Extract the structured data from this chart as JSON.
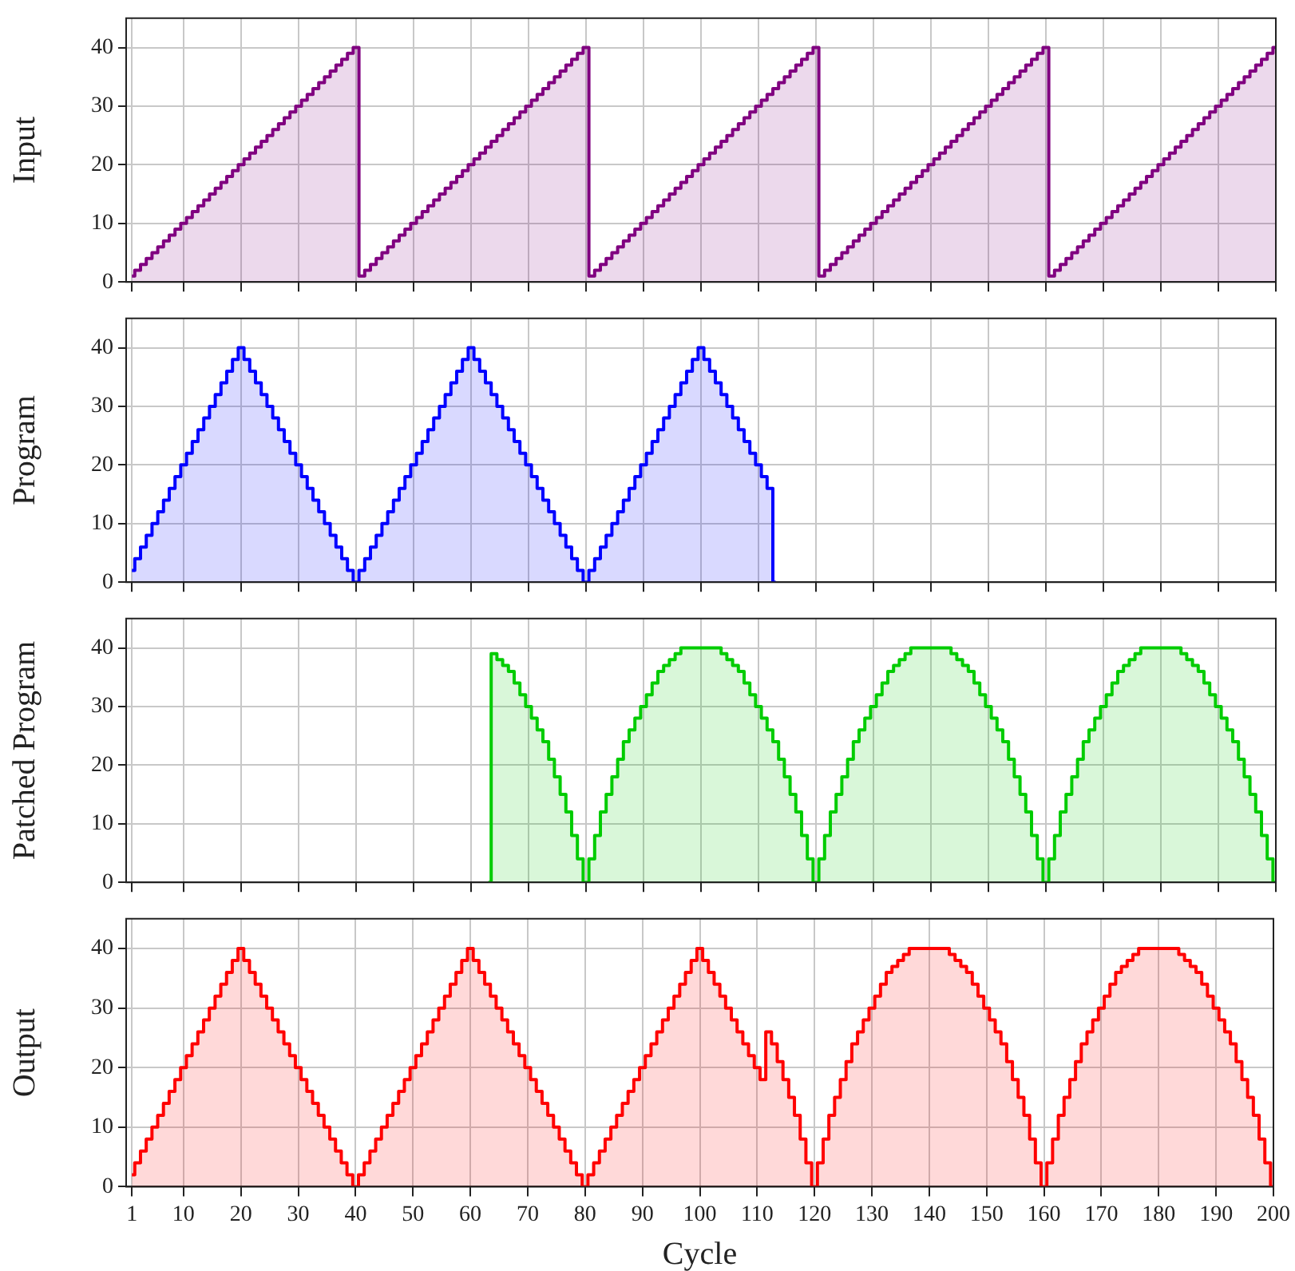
{
  "chart_data": [
    {
      "type": "area",
      "ylabel": "Input",
      "color": "#800080",
      "xlim": [
        0,
        200
      ],
      "ylim": [
        0,
        45
      ],
      "xticks": [
        1,
        10,
        20,
        30,
        40,
        50,
        60,
        70,
        80,
        90,
        100,
        110,
        120,
        130,
        140,
        150,
        160,
        170,
        180,
        190,
        200
      ],
      "yticks": [
        0,
        10,
        20,
        30,
        40
      ],
      "grid": true,
      "tick_labels": "y",
      "x": [
        1,
        2,
        3,
        4,
        5,
        6,
        7,
        8,
        9,
        10,
        11,
        12,
        13,
        14,
        15,
        16,
        17,
        18,
        19,
        20,
        21,
        22,
        23,
        24,
        25,
        26,
        27,
        28,
        29,
        30,
        31,
        32,
        33,
        34,
        35,
        36,
        37,
        38,
        39,
        40,
        41,
        42,
        43,
        44,
        45,
        46,
        47,
        48,
        49,
        50,
        51,
        52,
        53,
        54,
        55,
        56,
        57,
        58,
        59,
        60,
        61,
        62,
        63,
        64,
        65,
        66,
        67,
        68,
        69,
        70,
        71,
        72,
        73,
        74,
        75,
        76,
        77,
        78,
        79,
        80,
        81,
        82,
        83,
        84,
        85,
        86,
        87,
        88,
        89,
        90,
        91,
        92,
        93,
        94,
        95,
        96,
        97,
        98,
        99,
        100,
        101,
        102,
        103,
        104,
        105,
        106,
        107,
        108,
        109,
        110,
        111,
        112,
        113,
        114,
        115,
        116,
        117,
        118,
        119,
        120,
        121,
        122,
        123,
        124,
        125,
        126,
        127,
        128,
        129,
        130,
        131,
        132,
        133,
        134,
        135,
        136,
        137,
        138,
        139,
        140,
        141,
        142,
        143,
        144,
        145,
        146,
        147,
        148,
        149,
        150,
        151,
        152,
        153,
        154,
        155,
        156,
        157,
        158,
        159,
        160,
        161,
        162,
        163,
        164,
        165,
        166,
        167,
        168,
        169,
        170,
        171,
        172,
        173,
        174,
        175,
        176,
        177,
        178,
        179,
        180,
        181,
        182,
        183,
        184,
        185,
        186,
        187,
        188,
        189,
        190,
        191,
        192,
        193,
        194,
        195,
        196,
        197,
        198,
        199,
        200
      ],
      "values": [
        1,
        2,
        3,
        4,
        5,
        6,
        7,
        8,
        9,
        10,
        11,
        12,
        13,
        14,
        15,
        16,
        17,
        18,
        19,
        20,
        21,
        22,
        23,
        24,
        25,
        26,
        27,
        28,
        29,
        30,
        31,
        32,
        33,
        34,
        35,
        36,
        37,
        38,
        39,
        40,
        1,
        2,
        3,
        4,
        5,
        6,
        7,
        8,
        9,
        10,
        11,
        12,
        13,
        14,
        15,
        16,
        17,
        18,
        19,
        20,
        21,
        22,
        23,
        24,
        25,
        26,
        27,
        28,
        29,
        30,
        31,
        32,
        33,
        34,
        35,
        36,
        37,
        38,
        39,
        40,
        1,
        2,
        3,
        4,
        5,
        6,
        7,
        8,
        9,
        10,
        11,
        12,
        13,
        14,
        15,
        16,
        17,
        18,
        19,
        20,
        21,
        22,
        23,
        24,
        25,
        26,
        27,
        28,
        29,
        30,
        31,
        32,
        33,
        34,
        35,
        36,
        37,
        38,
        39,
        40,
        1,
        2,
        3,
        4,
        5,
        6,
        7,
        8,
        9,
        10,
        11,
        12,
        13,
        14,
        15,
        16,
        17,
        18,
        19,
        20,
        21,
        22,
        23,
        24,
        25,
        26,
        27,
        28,
        29,
        30,
        31,
        32,
        33,
        34,
        35,
        36,
        37,
        38,
        39,
        40,
        1,
        2,
        3,
        4,
        5,
        6,
        7,
        8,
        9,
        10,
        11,
        12,
        13,
        14,
        15,
        16,
        17,
        18,
        19,
        20,
        21,
        22,
        23,
        24,
        25,
        26,
        27,
        28,
        29,
        30,
        31,
        32,
        33,
        34,
        35,
        36,
        37,
        38,
        39,
        40
      ]
    },
    {
      "type": "area",
      "ylabel": "Program",
      "color": "#0000ff",
      "xlim": [
        0,
        200
      ],
      "ylim": [
        0,
        45
      ],
      "xticks": [
        1,
        10,
        20,
        30,
        40,
        50,
        60,
        70,
        80,
        90,
        100,
        110,
        120,
        130,
        140,
        150,
        160,
        170,
        180,
        190,
        200
      ],
      "yticks": [
        0,
        10,
        20,
        30,
        40
      ],
      "grid": true,
      "tick_labels": "y",
      "x": [
        1,
        2,
        3,
        4,
        5,
        6,
        7,
        8,
        9,
        10,
        11,
        12,
        13,
        14,
        15,
        16,
        17,
        18,
        19,
        20,
        21,
        22,
        23,
        24,
        25,
        26,
        27,
        28,
        29,
        30,
        31,
        32,
        33,
        34,
        35,
        36,
        37,
        38,
        39,
        40,
        41,
        42,
        43,
        44,
        45,
        46,
        47,
        48,
        49,
        50,
        51,
        52,
        53,
        54,
        55,
        56,
        57,
        58,
        59,
        60,
        61,
        62,
        63,
        64,
        65,
        66,
        67,
        68,
        69,
        70,
        71,
        72,
        73,
        74,
        75,
        76,
        77,
        78,
        79,
        80,
        81,
        82,
        83,
        84,
        85,
        86,
        87,
        88,
        89,
        90,
        91,
        92,
        93,
        94,
        95,
        96,
        97,
        98,
        99,
        100,
        101,
        102,
        103,
        104,
        105,
        106,
        107,
        108,
        109,
        110,
        111,
        112,
        113
      ],
      "values": [
        2,
        4,
        6,
        8,
        10,
        12,
        14,
        16,
        18,
        20,
        22,
        24,
        26,
        28,
        30,
        32,
        34,
        36,
        38,
        40,
        38,
        36,
        34,
        32,
        30,
        28,
        26,
        24,
        22,
        20,
        18,
        16,
        14,
        12,
        10,
        8,
        6,
        4,
        2,
        0,
        2,
        4,
        6,
        8,
        10,
        12,
        14,
        16,
        18,
        20,
        22,
        24,
        26,
        28,
        30,
        32,
        34,
        36,
        38,
        40,
        38,
        36,
        34,
        32,
        30,
        28,
        26,
        24,
        22,
        20,
        18,
        16,
        14,
        12,
        10,
        8,
        6,
        4,
        2,
        0,
        2,
        4,
        6,
        8,
        10,
        12,
        14,
        16,
        18,
        20,
        22,
        24,
        26,
        28,
        30,
        32,
        34,
        36,
        38,
        40,
        38,
        36,
        34,
        32,
        30,
        28,
        26,
        24,
        22,
        20,
        18,
        16,
        0
      ]
    },
    {
      "type": "area",
      "ylabel": "Patched Program",
      "color": "#00cc00",
      "xlim": [
        0,
        200
      ],
      "ylim": [
        0,
        45
      ],
      "xticks": [
        1,
        10,
        20,
        30,
        40,
        50,
        60,
        70,
        80,
        90,
        100,
        110,
        120,
        130,
        140,
        150,
        160,
        170,
        180,
        190,
        200
      ],
      "yticks": [
        0,
        10,
        20,
        30,
        40
      ],
      "grid": true,
      "tick_labels": "y",
      "x": [
        63,
        64,
        65,
        66,
        67,
        68,
        69,
        70,
        71,
        72,
        73,
        74,
        75,
        76,
        77,
        78,
        79,
        80,
        81,
        82,
        83,
        84,
        85,
        86,
        87,
        88,
        89,
        90,
        91,
        92,
        93,
        94,
        95,
        96,
        97,
        98,
        99,
        100,
        101,
        102,
        103,
        104,
        105,
        106,
        107,
        108,
        109,
        110,
        111,
        112,
        113,
        114,
        115,
        116,
        117,
        118,
        119,
        120,
        121,
        122,
        123,
        124,
        125,
        126,
        127,
        128,
        129,
        130,
        131,
        132,
        133,
        134,
        135,
        136,
        137,
        138,
        139,
        140,
        141,
        142,
        143,
        144,
        145,
        146,
        147,
        148,
        149,
        150,
        151,
        152,
        153,
        154,
        155,
        156,
        157,
        158,
        159,
        160,
        161,
        162,
        163,
        164,
        165,
        166,
        167,
        168,
        169,
        170,
        171,
        172,
        173,
        174,
        175,
        176,
        177,
        178,
        179,
        180,
        181,
        182,
        183,
        184,
        185,
        186,
        187,
        188,
        189,
        190,
        191,
        192,
        193,
        194,
        195,
        196,
        197,
        198,
        199,
        200
      ],
      "values": [
        0,
        39,
        38,
        37,
        36,
        34,
        32,
        30,
        28,
        26,
        24,
        21,
        18,
        15,
        12,
        8,
        4,
        0,
        4,
        8,
        12,
        15,
        18,
        21,
        24,
        26,
        28,
        30,
        32,
        34,
        36,
        37,
        38,
        39,
        40,
        40,
        40,
        40,
        40,
        40,
        40,
        39,
        38,
        37,
        36,
        34,
        32,
        30,
        28,
        26,
        24,
        21,
        18,
        15,
        12,
        8,
        4,
        0,
        4,
        8,
        12,
        15,
        18,
        21,
        24,
        26,
        28,
        30,
        32,
        34,
        36,
        37,
        38,
        39,
        40,
        40,
        40,
        40,
        40,
        40,
        40,
        39,
        38,
        37,
        36,
        34,
        32,
        30,
        28,
        26,
        24,
        21,
        18,
        15,
        12,
        8,
        4,
        0,
        4,
        8,
        12,
        15,
        18,
        21,
        24,
        26,
        28,
        30,
        32,
        34,
        36,
        37,
        38,
        39,
        40,
        40,
        40,
        40,
        40,
        40,
        40,
        39,
        38,
        37,
        36,
        34,
        32,
        30,
        28,
        26,
        24,
        21,
        18,
        15,
        12,
        8,
        4,
        0
      ]
    },
    {
      "type": "area",
      "ylabel": "Output",
      "xlabel": "Cycle",
      "color": "#ff0000",
      "xlim": [
        0,
        200
      ],
      "ylim": [
        0,
        45
      ],
      "xticks": [
        1,
        10,
        20,
        30,
        40,
        50,
        60,
        70,
        80,
        90,
        100,
        110,
        120,
        130,
        140,
        150,
        160,
        170,
        180,
        190,
        200
      ],
      "yticks": [
        0,
        10,
        20,
        30,
        40
      ],
      "grid": true,
      "x": [
        1,
        2,
        3,
        4,
        5,
        6,
        7,
        8,
        9,
        10,
        11,
        12,
        13,
        14,
        15,
        16,
        17,
        18,
        19,
        20,
        21,
        22,
        23,
        24,
        25,
        26,
        27,
        28,
        29,
        30,
        31,
        32,
        33,
        34,
        35,
        36,
        37,
        38,
        39,
        40,
        41,
        42,
        43,
        44,
        45,
        46,
        47,
        48,
        49,
        50,
        51,
        52,
        53,
        54,
        55,
        56,
        57,
        58,
        59,
        60,
        61,
        62,
        63,
        64,
        65,
        66,
        67,
        68,
        69,
        70,
        71,
        72,
        73,
        74,
        75,
        76,
        77,
        78,
        79,
        80,
        81,
        82,
        83,
        84,
        85,
        86,
        87,
        88,
        89,
        90,
        91,
        92,
        93,
        94,
        95,
        96,
        97,
        98,
        99,
        100,
        101,
        102,
        103,
        104,
        105,
        106,
        107,
        108,
        109,
        110,
        111,
        112,
        113,
        114,
        115,
        116,
        117,
        118,
        119,
        120,
        121,
        122,
        123,
        124,
        125,
        126,
        127,
        128,
        129,
        130,
        131,
        132,
        133,
        134,
        135,
        136,
        137,
        138,
        139,
        140,
        141,
        142,
        143,
        144,
        145,
        146,
        147,
        148,
        149,
        150,
        151,
        152,
        153,
        154,
        155,
        156,
        157,
        158,
        159,
        160,
        161,
        162,
        163,
        164,
        165,
        166,
        167,
        168,
        169,
        170,
        171,
        172,
        173,
        174,
        175,
        176,
        177,
        178,
        179,
        180,
        181,
        182,
        183,
        184,
        185,
        186,
        187,
        188,
        189,
        190,
        191,
        192,
        193,
        194,
        195,
        196,
        197,
        198,
        199,
        200
      ],
      "values": [
        2,
        4,
        6,
        8,
        10,
        12,
        14,
        16,
        18,
        20,
        22,
        24,
        26,
        28,
        30,
        32,
        34,
        36,
        38,
        40,
        38,
        36,
        34,
        32,
        30,
        28,
        26,
        24,
        22,
        20,
        18,
        16,
        14,
        12,
        10,
        8,
        6,
        4,
        2,
        0,
        2,
        4,
        6,
        8,
        10,
        12,
        14,
        16,
        18,
        20,
        22,
        24,
        26,
        28,
        30,
        32,
        34,
        36,
        38,
        40,
        38,
        36,
        34,
        32,
        30,
        28,
        26,
        24,
        22,
        20,
        18,
        16,
        14,
        12,
        10,
        8,
        6,
        4,
        2,
        0,
        2,
        4,
        6,
        8,
        10,
        12,
        14,
        16,
        18,
        20,
        22,
        24,
        26,
        28,
        30,
        32,
        34,
        36,
        38,
        40,
        38,
        36,
        34,
        32,
        30,
        28,
        26,
        24,
        22,
        20,
        18,
        26,
        24,
        21,
        18,
        15,
        12,
        8,
        4,
        0,
        4,
        8,
        12,
        15,
        18,
        21,
        24,
        26,
        28,
        30,
        32,
        34,
        36,
        37,
        38,
        39,
        40,
        40,
        40,
        40,
        40,
        40,
        40,
        39,
        38,
        37,
        36,
        34,
        32,
        30,
        28,
        26,
        24,
        21,
        18,
        15,
        12,
        8,
        4,
        0,
        4,
        8,
        12,
        15,
        18,
        21,
        24,
        26,
        28,
        30,
        32,
        34,
        36,
        37,
        38,
        39,
        40,
        40,
        40,
        40,
        40,
        40,
        40,
        39,
        38,
        37,
        36,
        34,
        32,
        30,
        28,
        26,
        24,
        21,
        18,
        15,
        12,
        8,
        4,
        0
      ]
    }
  ]
}
